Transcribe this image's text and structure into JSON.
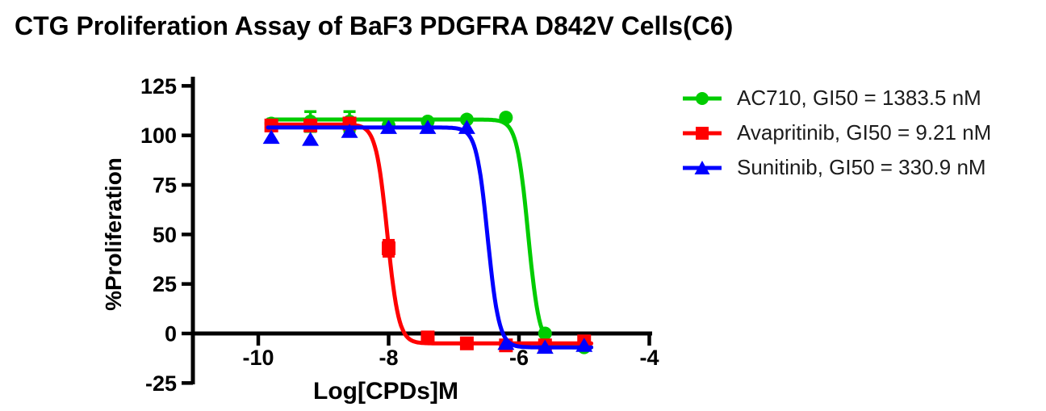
{
  "chart_data": {
    "type": "line",
    "title": "CTG Proliferation Assay of BaF3 PDGFRA D842V Cells(C6)",
    "xlabel": "Log[CPDs]M",
    "ylabel": "%Proliferation",
    "xlim": [
      -11,
      -4
    ],
    "ylim": [
      -25,
      125
    ],
    "xticks": [
      -10,
      -8,
      -6,
      -4
    ],
    "yticks": [
      -25,
      0,
      25,
      50,
      75,
      100,
      125
    ],
    "grid": false,
    "legend_position": "right",
    "x": [
      -9.8,
      -9.2,
      -8.6,
      -8.0,
      -7.4,
      -6.8,
      -6.2,
      -5.6,
      -5.0
    ],
    "series": [
      {
        "name": "AC710",
        "legend_label": "AC710, GI50 = 1383.5 nM",
        "gi50_nM": 1383.5,
        "color": "#00CC00",
        "marker": "circle",
        "values": [
          106,
          107,
          107,
          105,
          107,
          108,
          109,
          0,
          -7
        ],
        "error": [
          0,
          5,
          5,
          3,
          0,
          0,
          0,
          0,
          0
        ],
        "fit": {
          "top": 108,
          "bottom": -7,
          "log_ic50": -5.86,
          "hill": 5
        }
      },
      {
        "name": "Avapritinib",
        "legend_label": "Avapritinib, GI50 = 9.21 nM",
        "gi50_nM": 9.21,
        "color": "#FF0000",
        "marker": "square",
        "values": [
          105,
          105,
          106,
          43,
          -2,
          -5,
          -6,
          -6,
          -4
        ],
        "error": [
          0,
          0,
          0,
          4,
          0,
          0,
          0,
          0,
          0
        ],
        "fit": {
          "top": 105.5,
          "bottom": -5,
          "log_ic50": -8.02,
          "hill": 5
        }
      },
      {
        "name": "Sunitinib",
        "legend_label": "Sunitinib, GI50 = 330.9 nM",
        "gi50_nM": 330.9,
        "color": "#0000FF",
        "marker": "triangle",
        "values": [
          99,
          98,
          102,
          104,
          104,
          104,
          -5,
          -7,
          -6
        ],
        "error": [
          0,
          0,
          0,
          0,
          0,
          0,
          0,
          0,
          0
        ],
        "fit": {
          "top": 104,
          "bottom": -7,
          "log_ic50": -6.48,
          "hill": 5
        }
      }
    ]
  }
}
